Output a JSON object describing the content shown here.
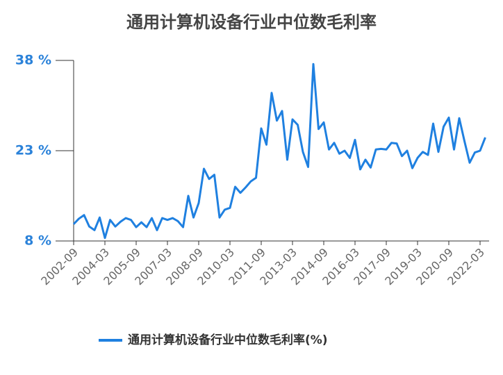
{
  "chart_data": {
    "type": "line",
    "title": "通用计算机设备行业中位数毛利率",
    "categories": [
      "2002-09",
      null,
      null,
      null,
      null,
      null,
      "2004-03",
      null,
      null,
      null,
      null,
      null,
      "2005-09",
      null,
      null,
      null,
      null,
      null,
      "2007-03",
      null,
      null,
      null,
      null,
      null,
      "2008-09",
      null,
      null,
      null,
      null,
      null,
      "2010-03",
      null,
      null,
      null,
      null,
      null,
      "2011-09",
      null,
      null,
      null,
      null,
      null,
      "2013-03",
      null,
      null,
      null,
      null,
      null,
      "2014-09",
      null,
      null,
      null,
      null,
      null,
      "2016-03",
      null,
      null,
      null,
      null,
      null,
      "2017-09",
      null,
      null,
      null,
      null,
      null,
      "2019-03",
      null,
      null,
      null,
      null,
      null,
      "2020-09",
      null,
      null,
      null,
      null,
      null,
      "2022-03",
      null
    ],
    "series": [
      {
        "name": "通用计算机设备行业中位数毛利率(%)",
        "color": "#1f80e0",
        "values": [
          10.8,
          11.7,
          12.3,
          10.4,
          9.8,
          11.9,
          8.5,
          11.5,
          10.4,
          11.2,
          11.8,
          11.5,
          10.3,
          11.1,
          10.3,
          11.8,
          9.8,
          11.8,
          11.5,
          11.8,
          11.3,
          10.3,
          15.5,
          11.9,
          14.3,
          20.0,
          18.3,
          19.0,
          11.9,
          13.2,
          13.5,
          17.0,
          16.0,
          16.9,
          17.9,
          18.5,
          26.7,
          24.0,
          32.6,
          28.0,
          29.6,
          21.5,
          28.2,
          27.3,
          22.8,
          20.3,
          37.4,
          26.6,
          27.7,
          23.2,
          24.3,
          22.5,
          23.0,
          21.8,
          24.8,
          19.9,
          21.5,
          20.2,
          23.2,
          23.3,
          23.2,
          24.3,
          24.2,
          22.1,
          23.0,
          20.1,
          21.8,
          22.8,
          22.3,
          27.5,
          22.8,
          27.0,
          28.5,
          23.2,
          28.4,
          24.6,
          21.0,
          22.7,
          23.0,
          25.2
        ]
      }
    ],
    "ylim": [
      8,
      38
    ],
    "yticks": [
      {
        "value": 8,
        "label": "8 %"
      },
      {
        "value": 23,
        "label": "23 %"
      },
      {
        "value": 38,
        "label": "38 %"
      }
    ],
    "legend": "bottom"
  }
}
